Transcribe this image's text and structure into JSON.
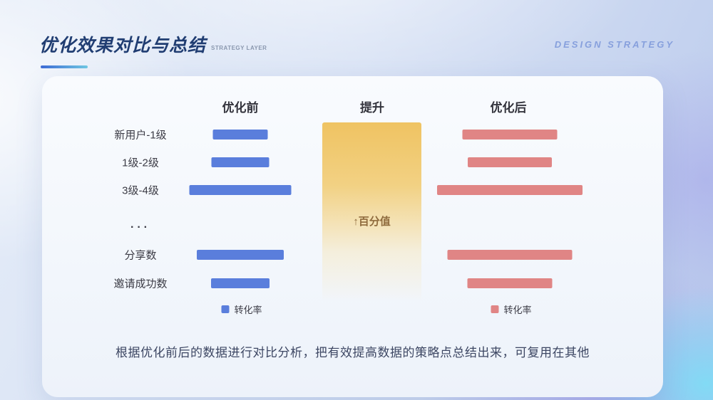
{
  "header": {
    "title": "优化效果对比与总结",
    "title_caption": "STRATEGY LAYER",
    "watermark": "DESIGN STRATEGY"
  },
  "chart": {
    "col_before": "优化前",
    "col_lift": "提升",
    "col_after": "优化后",
    "lift_box_label": "↑百分值",
    "legend_label": "转化率",
    "rows": [
      {
        "label": "新用户-1级",
        "before": 77,
        "after": 133
      },
      {
        "label": "1级-2级",
        "before": 81,
        "after": 118
      },
      {
        "label": "3级-4级",
        "before": 143,
        "after": 204
      },
      {
        "label": "···",
        "before": null,
        "after": null
      },
      {
        "label": "分享数",
        "before": 122,
        "after": 175
      },
      {
        "label": "邀请成功数",
        "before": 82,
        "after": 119
      }
    ]
  },
  "summary": "根据优化前后的数据进行对比分析，把有效提高数据的策略点总结出来，可复用在其他",
  "colors": {
    "bar_before": "#5A7EDC",
    "bar_after": "#E08585",
    "lift_box_top": "#EFC362",
    "lift_text": "#8F6B3E",
    "title": "#203D72",
    "watermark": "#87A0DD",
    "underline_start": "#3E6BD5",
    "underline_end": "#6FC8E3"
  },
  "chart_data": {
    "type": "bar",
    "orientation": "horizontal",
    "title": "优化效果对比与总结",
    "categories": [
      "新用户-1级",
      "1级-2级",
      "3级-4级",
      "···",
      "分享数",
      "邀请成功数"
    ],
    "series": [
      {
        "name": "优化前 转化率",
        "color": "#5A7EDC",
        "values": [
          77,
          81,
          143,
          null,
          122,
          82
        ]
      },
      {
        "name": "优化后 转化率",
        "color": "#E08585",
        "values": [
          133,
          118,
          204,
          null,
          175,
          119
        ]
      }
    ],
    "value_unit": "relative bar width in px (no numeric axis or data labels shown)",
    "annotations": [
      "提升",
      "↑百分值"
    ],
    "legend_position": "below each column",
    "grid": false
  }
}
